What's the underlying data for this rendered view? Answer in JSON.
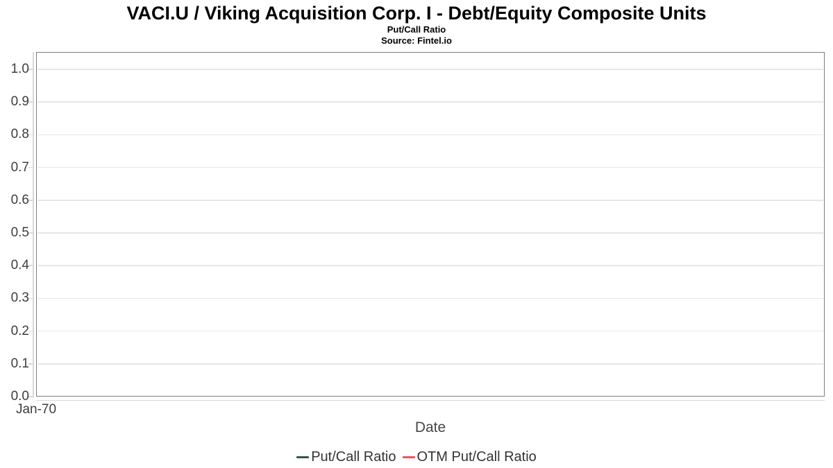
{
  "chart_data": {
    "type": "line",
    "title": "VACI.U / Viking Acquisition Corp. I - Debt/Equity Composite Units",
    "subtitle": "Put/Call Ratio",
    "source": "Source: Fintel.io",
    "xlabel": "Date",
    "ylabel": "",
    "x_tick_labels": [
      "Jan-70"
    ],
    "y_tick_labels": [
      "0.0",
      "0.1",
      "0.2",
      "0.3",
      "0.4",
      "0.5",
      "0.6",
      "0.7",
      "0.8",
      "0.9",
      "1.0"
    ],
    "ylim": [
      0.0,
      1.05
    ],
    "grid": "horizontal-only",
    "legend_position": "bottom-center",
    "series": [
      {
        "name": "Put/Call Ratio",
        "color": "#2a5c3f",
        "x": [],
        "values": []
      },
      {
        "name": "OTM Put/Call Ratio",
        "color": "#f4534e",
        "x": [],
        "values": []
      }
    ]
  },
  "colors": {
    "background": "#ffffff",
    "plot_border": "#7d7d7d",
    "gridline": "#e6e6e6",
    "axis_line": "#d8d8d8",
    "tick_label": "#3d3d3d",
    "axis_title": "#454545",
    "legend_text": "#333333",
    "title_text": "#000000"
  }
}
